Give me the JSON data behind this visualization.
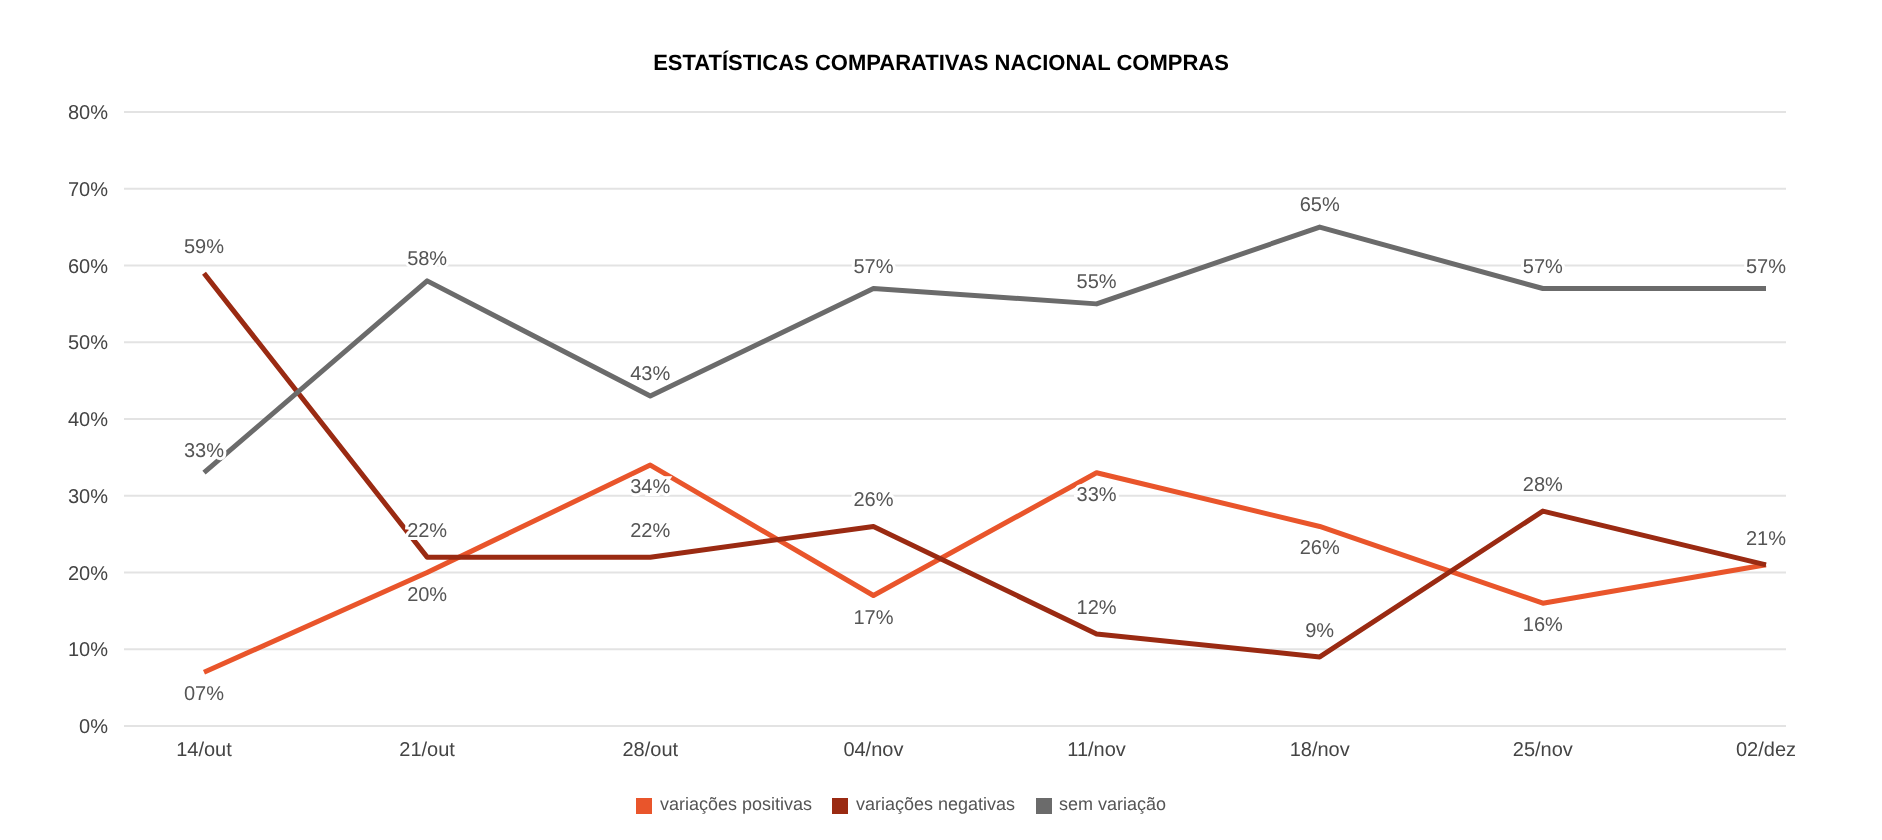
{
  "chart_data": {
    "type": "line",
    "title": "ESTATÍSTICAS COMPARATIVAS NACIONAL COMPRAS",
    "categories": [
      "14/out",
      "21/out",
      "28/out",
      "04/nov",
      "11/nov",
      "18/nov",
      "25/nov",
      "02/dez"
    ],
    "series": [
      {
        "name": "variações positivas",
        "color": "#e9552b",
        "values": [
          7,
          20,
          34,
          17,
          33,
          26,
          16,
          21
        ],
        "value_labels": [
          "07%",
          "20%",
          "34%",
          "17%",
          "33%",
          "26%",
          "16%",
          null
        ]
      },
      {
        "name": "variações negativas",
        "color": "#9a2a12",
        "values": [
          59,
          22,
          22,
          26,
          12,
          9,
          28,
          21
        ],
        "value_labels": [
          "59%",
          "22%",
          "22%",
          "26%",
          "12%",
          "9%",
          "28%",
          "21%"
        ]
      },
      {
        "name": "sem variação",
        "color": "#6b6b6b",
        "values": [
          33,
          58,
          43,
          57,
          55,
          65,
          57,
          57
        ],
        "value_labels": [
          "33%",
          "58%",
          "43%",
          "57%",
          "55%",
          "65%",
          "57%",
          "57%"
        ]
      }
    ],
    "ylim": [
      0,
      80
    ],
    "yticks": [
      {
        "value": 0,
        "label": "0%"
      },
      {
        "value": 10,
        "label": "10%"
      },
      {
        "value": 20,
        "label": "20%"
      },
      {
        "value": 30,
        "label": "30%"
      },
      {
        "value": 40,
        "label": "40%"
      },
      {
        "value": 50,
        "label": "50%"
      },
      {
        "value": 60,
        "label": "60%"
      },
      {
        "value": 70,
        "label": "70%"
      },
      {
        "value": 80,
        "label": "80%"
      }
    ],
    "grid": "y",
    "legend": "bottom",
    "marker": "none",
    "line_style": "solid"
  }
}
